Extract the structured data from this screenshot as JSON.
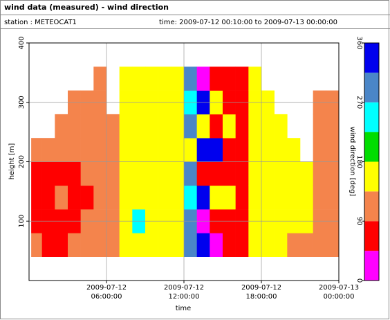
{
  "chart_data": {
    "type": "heatmap",
    "title": "wind data (measured) - wind direction",
    "station": "station : METEOCAT1",
    "period": "time: 2009-07-12 00:10:00 to 2009-07-13 00:00:00",
    "xlabel": "time",
    "ylabel": "height [m]",
    "colorbar_label": "wind direction [deg]",
    "xlim": [
      "2009-07-12 00:00:00",
      "2009-07-13 00:00:00"
    ],
    "xticks": [
      {
        "value": "2009-07-12 06:00:00",
        "label": "2009-07-12\n06:00:00"
      },
      {
        "value": "2009-07-12 12:00:00",
        "label": "2009-07-12\n12:00:00"
      },
      {
        "value": "2009-07-12 18:00:00",
        "label": "2009-07-12\n18:00:00"
      },
      {
        "value": "2009-07-13 00:00:00",
        "label": "2009-07-13\n00:00:00"
      }
    ],
    "ylim": [
      0,
      400
    ],
    "yticks": [
      100,
      200,
      300,
      400
    ],
    "grid": true,
    "x": [
      "2009-07-12 00:10:00",
      "2009-07-12 01:00:00",
      "2009-07-12 02:00:00",
      "2009-07-12 03:00:00",
      "2009-07-12 04:00:00",
      "2009-07-12 05:00:00",
      "2009-07-12 06:00:00",
      "2009-07-12 07:00:00",
      "2009-07-12 08:00:00",
      "2009-07-12 09:00:00",
      "2009-07-12 10:00:00",
      "2009-07-12 11:00:00",
      "2009-07-12 12:00:00",
      "2009-07-12 13:00:00",
      "2009-07-12 14:00:00",
      "2009-07-12 15:00:00",
      "2009-07-12 16:00:00",
      "2009-07-12 17:00:00",
      "2009-07-12 18:00:00",
      "2009-07-12 19:00:00",
      "2009-07-12 20:00:00",
      "2009-07-12 21:00:00",
      "2009-07-12 22:00:00",
      "2009-07-12 23:00:00",
      "2009-07-13 00:00:00"
    ],
    "y": [
      40,
      80,
      120,
      160,
      200,
      240,
      280,
      320,
      360
    ],
    "values": [
      [
        110,
        60,
        60,
        60,
        110,
        null,
        null,
        null
      ],
      [
        60,
        60,
        60,
        60,
        110,
        null,
        null,
        null
      ],
      [
        60,
        60,
        110,
        60,
        110,
        110,
        null,
        null
      ],
      [
        110,
        60,
        60,
        60,
        110,
        110,
        110,
        null
      ],
      [
        110,
        110,
        60,
        110,
        110,
        110,
        110,
        null
      ],
      [
        110,
        110,
        110,
        110,
        110,
        110,
        110,
        110
      ],
      [
        110,
        110,
        110,
        110,
        110,
        110,
        null,
        null
      ],
      [
        160,
        160,
        160,
        160,
        160,
        160,
        160,
        160
      ],
      [
        160,
        250,
        160,
        160,
        160,
        160,
        160,
        160
      ],
      [
        160,
        160,
        160,
        160,
        160,
        160,
        160,
        160
      ],
      [
        160,
        160,
        160,
        160,
        160,
        160,
        160,
        160
      ],
      [
        160,
        160,
        160,
        160,
        160,
        160,
        160,
        160
      ],
      [
        290,
        290,
        250,
        290,
        160,
        290,
        250,
        290
      ],
      [
        340,
        20,
        340,
        60,
        340,
        160,
        340,
        20
      ],
      [
        20,
        60,
        160,
        60,
        340,
        60,
        160,
        60
      ],
      [
        60,
        60,
        160,
        60,
        60,
        160,
        60,
        60
      ],
      [
        60,
        60,
        60,
        60,
        60,
        60,
        60,
        60
      ],
      [
        160,
        160,
        160,
        160,
        160,
        160,
        160,
        160
      ],
      [
        160,
        160,
        160,
        160,
        160,
        160,
        160,
        null
      ],
      [
        160,
        160,
        160,
        160,
        160,
        160,
        null,
        null
      ],
      [
        110,
        160,
        160,
        160,
        160,
        null,
        null,
        null
      ],
      [
        110,
        160,
        160,
        160,
        null,
        null,
        null,
        null
      ],
      [
        110,
        110,
        110,
        110,
        110,
        110,
        110,
        null
      ],
      [
        110,
        110,
        110,
        110,
        110,
        110,
        110,
        null
      ]
    ],
    "colorbar": {
      "bounds": [
        0,
        45,
        90,
        135,
        180,
        225,
        270,
        315,
        360
      ],
      "colors": [
        "#ff00ff",
        "#ff0000",
        "#f4844c",
        "#ffff00",
        "#00dd00",
        "#00ffff",
        "#4a86c8",
        "#0000ee"
      ],
      "ticks": [
        0,
        90,
        180,
        270,
        360
      ]
    }
  }
}
